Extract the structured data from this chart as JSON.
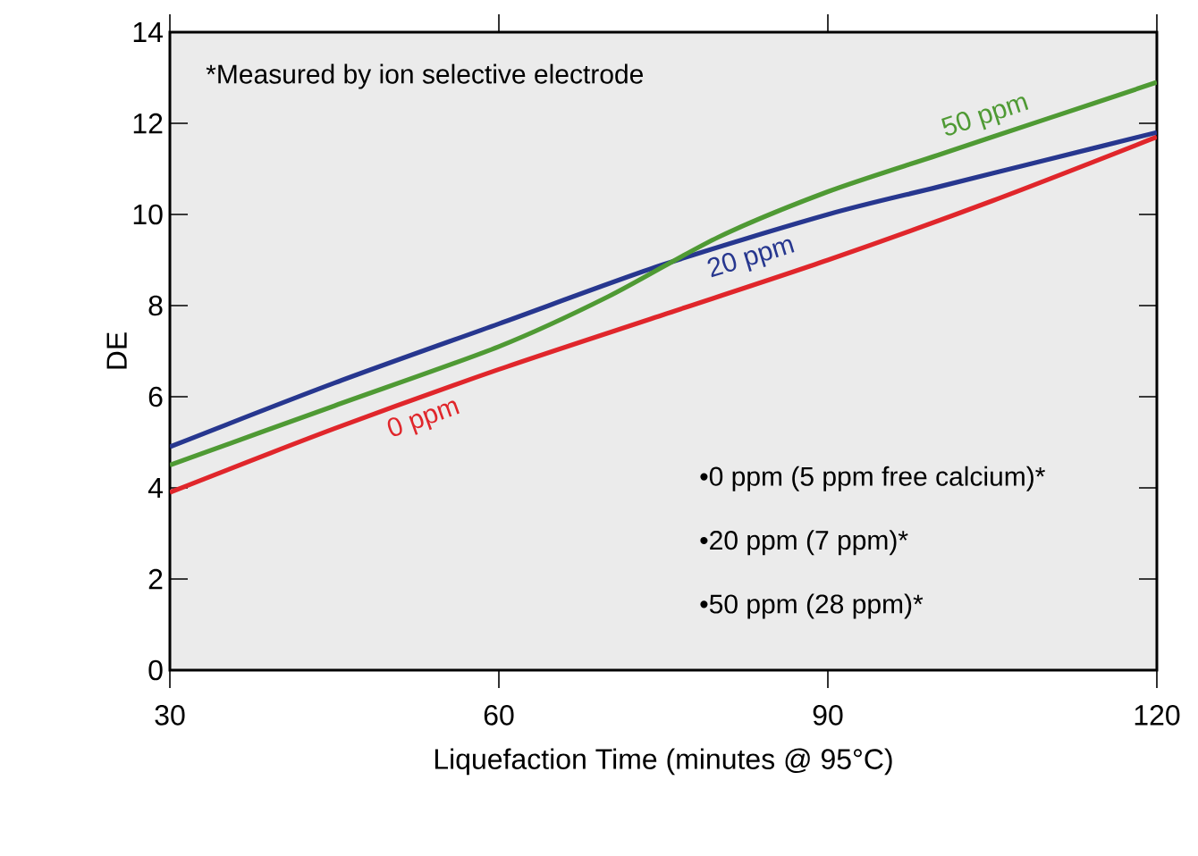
{
  "chart_data": {
    "type": "line",
    "xlabel": "Liquefaction Time (minutes @ 95°C)",
    "ylabel": "DE",
    "xlim": [
      30,
      120
    ],
    "xticks": [
      30,
      60,
      90,
      120
    ],
    "ylim": [
      0,
      14
    ],
    "yticks": [
      0,
      2,
      4,
      6,
      8,
      10,
      12,
      14
    ],
    "grid": false,
    "legend": false,
    "marker": "none",
    "line_style": "solid",
    "series": [
      {
        "name": "0 ppm",
        "color": "#e0262b",
        "x": [
          30,
          45,
          60,
          75,
          90,
          105,
          120
        ],
        "values": [
          3.9,
          5.3,
          6.6,
          7.8,
          9.0,
          10.3,
          11.7
        ]
      },
      {
        "name": "20 ppm",
        "color": "#27378f",
        "x": [
          30,
          45,
          60,
          75,
          90,
          100,
          110,
          120
        ],
        "values": [
          4.9,
          6.3,
          7.6,
          8.9,
          10.0,
          10.6,
          11.2,
          11.8
        ]
      },
      {
        "name": "50 ppm",
        "color": "#4f9a34",
        "x": [
          30,
          45,
          60,
          70,
          80,
          90,
          100,
          110,
          120
        ],
        "values": [
          4.5,
          5.8,
          7.1,
          8.2,
          9.5,
          10.5,
          11.3,
          12.1,
          12.9
        ]
      }
    ],
    "annotations": [
      "*Measured by ion selective electrode",
      "•0 ppm (5 ppm free calcium)*",
      "•20 ppm (7 ppm)*",
      "•50 ppm (28 ppm)*"
    ]
  }
}
